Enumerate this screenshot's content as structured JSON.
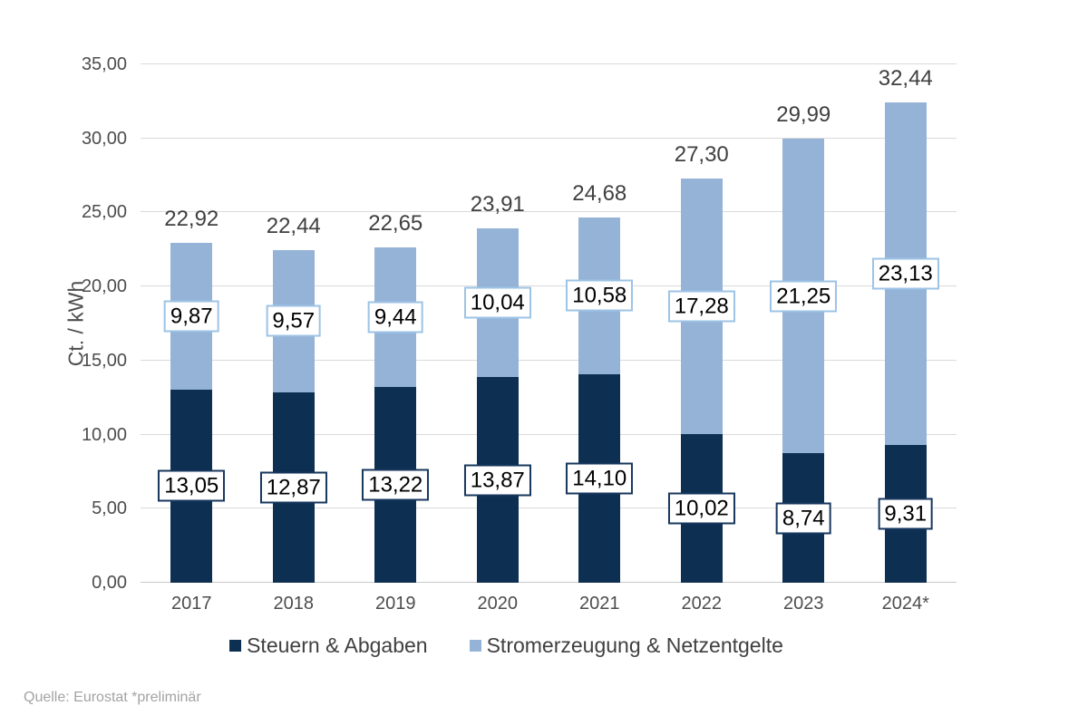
{
  "chart_data": {
    "type": "bar",
    "stacked": true,
    "title": "",
    "xlabel": "",
    "ylabel": "Ct. / kWh",
    "ylim": [
      0,
      35
    ],
    "y_tick_step": 5,
    "y_tick_labels": [
      "0,00",
      "5,00",
      "10,00",
      "15,00",
      "20,00",
      "25,00",
      "30,00",
      "35,00"
    ],
    "grid": true,
    "legend_position": "bottom",
    "categories": [
      "2017",
      "2018",
      "2019",
      "2020",
      "2021",
      "2022",
      "2023",
      "2024*"
    ],
    "series": [
      {
        "name": "Steuern & Abgaben",
        "slug": "steuern-abgaben",
        "color": "#0d2f52",
        "label_border_color": "#17375e",
        "values": [
          13.05,
          12.87,
          13.22,
          13.87,
          14.1,
          10.02,
          8.74,
          9.31
        ],
        "labels": [
          "13,05",
          "12,87",
          "13,22",
          "13,87",
          "14,10",
          "10,02",
          "8,74",
          "9,31"
        ]
      },
      {
        "name": "Stromerzeugung & Netzentgelte",
        "slug": "stromerzeugung-netzentgelte",
        "color": "#95b3d7",
        "label_border_color": "#9dc3e6",
        "values": [
          9.87,
          9.57,
          9.44,
          10.04,
          10.58,
          17.28,
          21.25,
          23.13
        ],
        "labels": [
          "9,87",
          "9,57",
          "9,44",
          "10,04",
          "10,58",
          "17,28",
          "21,25",
          "23,13"
        ]
      }
    ],
    "totals": {
      "values": [
        22.92,
        22.44,
        22.65,
        23.91,
        24.68,
        27.3,
        29.99,
        32.44
      ],
      "labels": [
        "22,92",
        "22,44",
        "22,65",
        "23,91",
        "24,68",
        "27,30",
        "29,99",
        "32,44"
      ]
    }
  },
  "footer": {
    "source_note": "Quelle: Eurostat  *preliminär"
  },
  "colors": {
    "background": "#ffffff",
    "grid_line": "#dadada",
    "axis_line": "#c9c9c9",
    "tick_text": "#4d4d4d",
    "category_text": "#4d4d4d",
    "total_text": "#404040",
    "segment_label_text": "#000000",
    "legend_text": "#404040",
    "footer_text": "#a3a3a3"
  }
}
